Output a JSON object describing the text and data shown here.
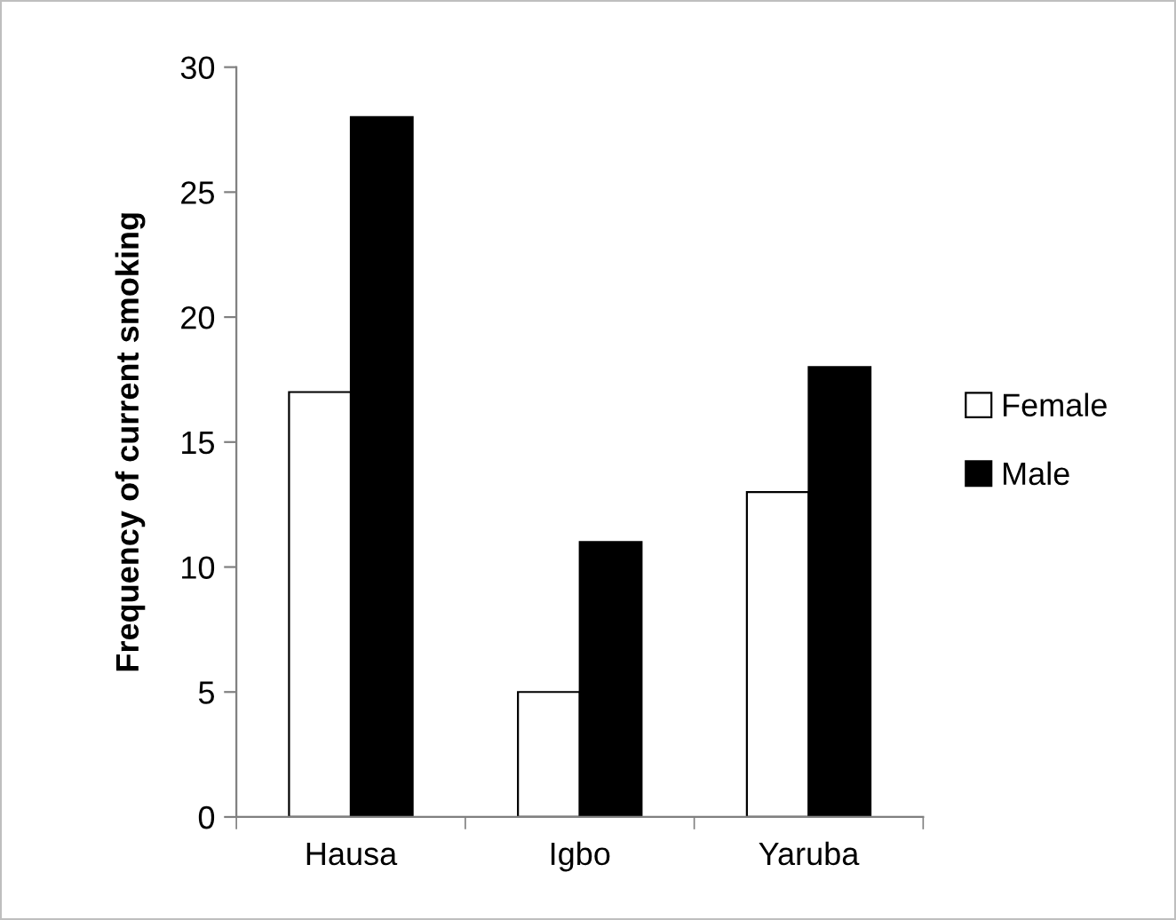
{
  "chart_data": {
    "type": "bar",
    "ylabel": "Frequency of current smoking",
    "categories": [
      "Hausa",
      "Igbo",
      "Yaruba"
    ],
    "series": [
      {
        "name": "Female",
        "color": "#ffffff",
        "values": [
          17,
          5,
          13
        ]
      },
      {
        "name": "Male",
        "color": "#000000",
        "values": [
          28,
          11,
          18
        ]
      }
    ],
    "ylim": [
      0,
      30
    ],
    "yticks": [
      0,
      5,
      10,
      15,
      20,
      25,
      30
    ],
    "grid": false,
    "legend": "right"
  }
}
